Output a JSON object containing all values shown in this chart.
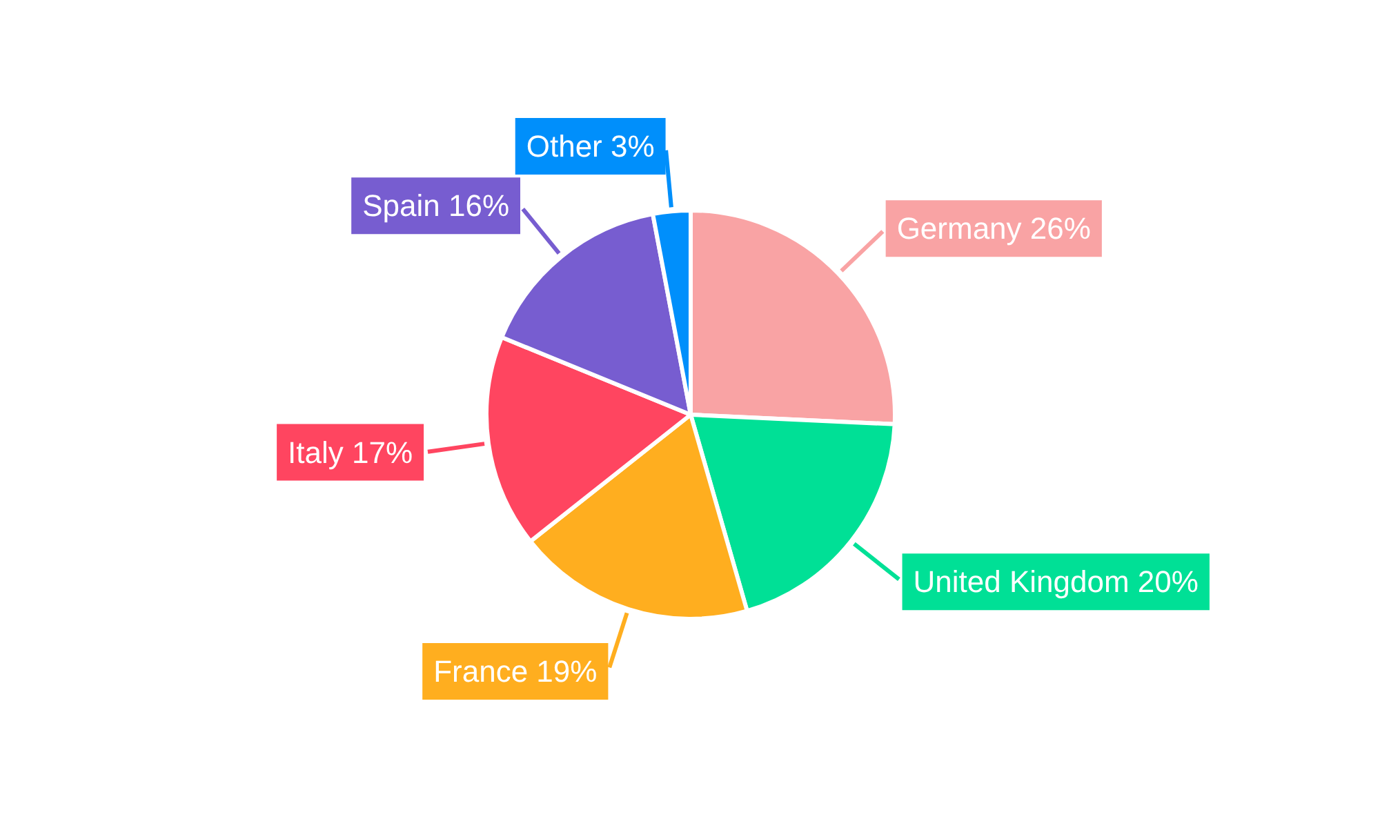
{
  "chart_data": {
    "type": "pie",
    "categories": [
      "Germany",
      "United Kingdom",
      "France",
      "Italy",
      "Spain",
      "Other"
    ],
    "values": [
      26,
      20,
      19,
      17,
      16,
      3
    ],
    "value_labels": [
      "26%",
      "20%",
      "19%",
      "17%",
      "16%",
      "3%"
    ],
    "colors": [
      "#f9a3a4",
      "#00e096",
      "#ffae1f",
      "#ff4560",
      "#775dd0",
      "#008ffb"
    ]
  }
}
